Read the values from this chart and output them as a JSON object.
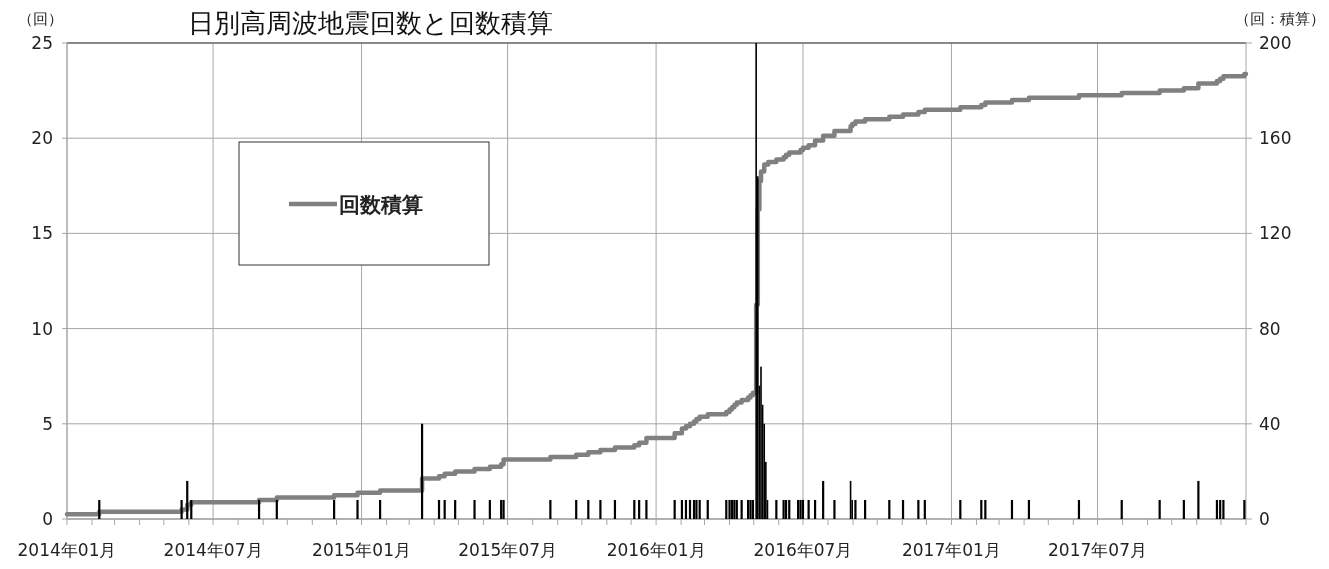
{
  "chart_data": {
    "type": "step",
    "title": "日別高周波地震回数と回数積算",
    "ylabel": "（回）",
    "y2label": "（回：積算）",
    "xlim": [
      "2014-01-01",
      "2018-01-01"
    ],
    "xticks": [
      {
        "value": "2014-01-01",
        "label": "2014年01月"
      },
      {
        "value": "2014-02-01",
        "label": null
      },
      {
        "value": "2014-03-01",
        "label": null
      },
      {
        "value": "2014-04-01",
        "label": null
      },
      {
        "value": "2014-05-01",
        "label": null
      },
      {
        "value": "2014-06-01",
        "label": null
      },
      {
        "value": "2014-07-01",
        "label": "2014年07月"
      },
      {
        "value": "2014-08-01",
        "label": null
      },
      {
        "value": "2014-09-01",
        "label": null
      },
      {
        "value": "2014-10-01",
        "label": null
      },
      {
        "value": "2014-11-01",
        "label": null
      },
      {
        "value": "2014-12-01",
        "label": null
      },
      {
        "value": "2015-01-01",
        "label": "2015年01月"
      },
      {
        "value": "2015-02-01",
        "label": null
      },
      {
        "value": "2015-03-01",
        "label": null
      },
      {
        "value": "2015-04-01",
        "label": null
      },
      {
        "value": "2015-05-01",
        "label": null
      },
      {
        "value": "2015-06-01",
        "label": null
      },
      {
        "value": "2015-07-01",
        "label": "2015年07月"
      },
      {
        "value": "2015-08-01",
        "label": null
      },
      {
        "value": "2015-09-01",
        "label": null
      },
      {
        "value": "2015-10-01",
        "label": null
      },
      {
        "value": "2015-11-01",
        "label": null
      },
      {
        "value": "2015-12-01",
        "label": null
      },
      {
        "value": "2016-01-01",
        "label": "2016年01月"
      },
      {
        "value": "2016-02-01",
        "label": null
      },
      {
        "value": "2016-03-01",
        "label": null
      },
      {
        "value": "2016-04-01",
        "label": null
      },
      {
        "value": "2016-05-01",
        "label": null
      },
      {
        "value": "2016-06-01",
        "label": null
      },
      {
        "value": "2016-07-01",
        "label": "2016年07月"
      },
      {
        "value": "2016-08-01",
        "label": null
      },
      {
        "value": "2016-09-01",
        "label": null
      },
      {
        "value": "2016-10-01",
        "label": null
      },
      {
        "value": "2016-11-01",
        "label": null
      },
      {
        "value": "2016-12-01",
        "label": null
      },
      {
        "value": "2017-01-01",
        "label": "2017年01月"
      },
      {
        "value": "2017-02-01",
        "label": null
      },
      {
        "value": "2017-03-01",
        "label": null
      },
      {
        "value": "2017-04-01",
        "label": null
      },
      {
        "value": "2017-05-01",
        "label": null
      },
      {
        "value": "2017-06-01",
        "label": null
      },
      {
        "value": "2017-07-01",
        "label": "2017年07月"
      },
      {
        "value": "2017-08-01",
        "label": null
      },
      {
        "value": "2017-09-01",
        "label": null
      },
      {
        "value": "2017-10-01",
        "label": null
      },
      {
        "value": "2017-11-01",
        "label": null
      },
      {
        "value": "2017-12-01",
        "label": null
      },
      {
        "value": "2018-01-01",
        "label": null
      }
    ],
    "ylim": [
      0,
      25
    ],
    "yticks": [
      0,
      5,
      10,
      15,
      20,
      25
    ],
    "y2lim": [
      0,
      200
    ],
    "y2ticks": [
      0,
      40,
      80,
      120,
      160,
      200
    ],
    "grid": true,
    "legend": "top left",
    "series": [
      {
        "type": "bar",
        "color": "#000000",
        "x": [
          "2014-02-10",
          "2014-05-23",
          "2014-05-30",
          "2014-06-04",
          "2014-08-27",
          "2014-09-18",
          "2014-11-28",
          "2014-12-27",
          "2015-01-24",
          "2015-03-17",
          "2015-04-07",
          "2015-04-14",
          "2015-04-27",
          "2015-05-21",
          "2015-06-09",
          "2015-06-23",
          "2015-06-26",
          "2015-08-23",
          "2015-09-24",
          "2015-10-09",
          "2015-10-24",
          "2015-11-11",
          "2015-12-05",
          "2015-12-11",
          "2015-12-20",
          "2016-01-24",
          "2016-02-02",
          "2016-02-07",
          "2016-02-12",
          "2016-02-17",
          "2016-02-20",
          "2016-02-24",
          "2016-03-05",
          "2016-03-28",
          "2016-04-01",
          "2016-04-04",
          "2016-04-07",
          "2016-04-10",
          "2016-04-16",
          "2016-04-24",
          "2016-04-27",
          "2016-04-30",
          "2016-05-04",
          "2016-05-06",
          "2016-05-08",
          "2016-05-10",
          "2016-05-12",
          "2016-05-14",
          "2016-05-16",
          "2016-05-18",
          "2016-05-29",
          "2016-06-07",
          "2016-06-10",
          "2016-06-14",
          "2016-06-25",
          "2016-06-28",
          "2016-07-01",
          "2016-07-08",
          "2016-07-16",
          "2016-07-26",
          "2016-08-09",
          "2016-08-29",
          "2016-08-31",
          "2016-09-04",
          "2016-09-16",
          "2016-10-16",
          "2016-11-02",
          "2016-11-21",
          "2016-11-29",
          "2017-01-12",
          "2017-02-07",
          "2017-02-12",
          "2017-03-17",
          "2017-04-07",
          "2017-06-08",
          "2017-07-31",
          "2017-09-16",
          "2017-10-16",
          "2017-11-03",
          "2017-11-26",
          "2017-11-30",
          "2017-12-04",
          "2017-12-30"
        ],
        "values": [
          1,
          1,
          2,
          1,
          1,
          1,
          1,
          1,
          1,
          5,
          1,
          1,
          1,
          1,
          1,
          1,
          1,
          1,
          1,
          1,
          1,
          1,
          1,
          1,
          1,
          1,
          1,
          1,
          1,
          1,
          1,
          1,
          1,
          1,
          1,
          1,
          1,
          1,
          1,
          1,
          1,
          1,
          25,
          18,
          7,
          8,
          6,
          5,
          3,
          1,
          1,
          1,
          1,
          1,
          1,
          1,
          1,
          1,
          1,
          2,
          1,
          2,
          1,
          1,
          1,
          1,
          1,
          1,
          1,
          1,
          1,
          1,
          1,
          1,
          1,
          1,
          1,
          1,
          2,
          1,
          1,
          1,
          1
        ]
      },
      {
        "axis": "y2",
        "name": "回数積算",
        "color": "#808080",
        "x": [
          "2014-01-01",
          "2014-02-10",
          "2014-05-23",
          "2014-05-30",
          "2014-06-04",
          "2014-08-27",
          "2014-09-18",
          "2014-11-28",
          "2014-12-27",
          "2015-01-24",
          "2015-03-17",
          "2015-04-07",
          "2015-04-14",
          "2015-04-27",
          "2015-05-21",
          "2015-06-09",
          "2015-06-23",
          "2015-06-26",
          "2015-08-23",
          "2015-09-24",
          "2015-10-09",
          "2015-10-24",
          "2015-11-11",
          "2015-12-05",
          "2015-12-11",
          "2015-12-20",
          "2016-01-24",
          "2016-02-02",
          "2016-02-07",
          "2016-02-12",
          "2016-02-17",
          "2016-02-20",
          "2016-02-24",
          "2016-03-05",
          "2016-03-28",
          "2016-04-01",
          "2016-04-04",
          "2016-04-07",
          "2016-04-10",
          "2016-04-16",
          "2016-04-24",
          "2016-04-27",
          "2016-04-30",
          "2016-05-04",
          "2016-05-06",
          "2016-05-08",
          "2016-05-10",
          "2016-05-14",
          "2016-05-19",
          "2016-05-29",
          "2016-06-07",
          "2016-06-10",
          "2016-06-14",
          "2016-06-25",
          "2016-06-28",
          "2016-07-01",
          "2016-07-08",
          "2016-07-16",
          "2016-07-26",
          "2016-08-09",
          "2016-08-29",
          "2016-08-31",
          "2016-09-04",
          "2016-09-16",
          "2016-10-16",
          "2016-11-02",
          "2016-11-21",
          "2016-11-29",
          "2017-01-12",
          "2017-02-07",
          "2017-02-12",
          "2017-03-17",
          "2017-04-07",
          "2017-06-08",
          "2017-07-31",
          "2017-09-16",
          "2017-10-16",
          "2017-11-03",
          "2017-11-26",
          "2017-11-30",
          "2017-12-04",
          "2017-12-30"
        ],
        "values": [
          2,
          3,
          4,
          6,
          7,
          8,
          9,
          10,
          11,
          12,
          17,
          18,
          19,
          20,
          21,
          22,
          23,
          25,
          26,
          27,
          28,
          29,
          30,
          31,
          32,
          34,
          36,
          38,
          39,
          40,
          41,
          42,
          43,
          44,
          45,
          46,
          47,
          48,
          49,
          50,
          51,
          52,
          53,
          90,
          130,
          142,
          146,
          149,
          150,
          151,
          152,
          153,
          154,
          154,
          155,
          156,
          157,
          159,
          161,
          163,
          165,
          166,
          167,
          168,
          169,
          170,
          171,
          172,
          173,
          174,
          175,
          176,
          177,
          178,
          179,
          180,
          181,
          183,
          184,
          185,
          186,
          187
        ]
      }
    ]
  }
}
